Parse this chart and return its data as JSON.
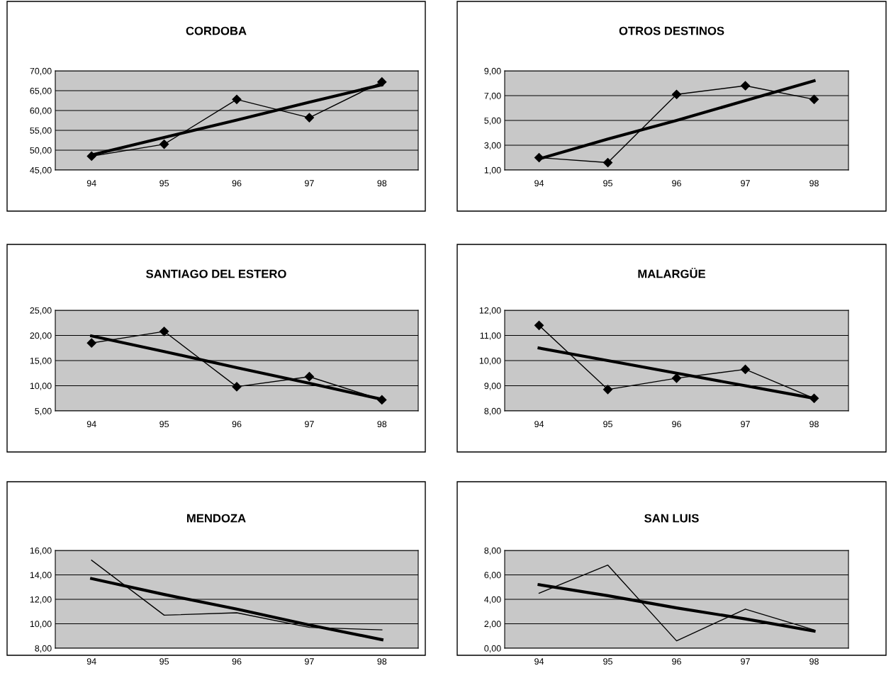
{
  "chart_data": [
    {
      "type": "line",
      "title": "CORDOBA",
      "categories": [
        "94",
        "95",
        "96",
        "97",
        "98"
      ],
      "ylim": [
        45,
        70
      ],
      "yticks": [
        {
          "value": 45,
          "label": "45,00"
        },
        {
          "value": 50,
          "label": "50,00"
        },
        {
          "value": 55,
          "label": "55,00"
        },
        {
          "value": 60,
          "label": "60,00"
        },
        {
          "value": 65,
          "label": "65,00"
        },
        {
          "value": 70,
          "label": "70,00"
        }
      ],
      "grid": "y",
      "series": [
        {
          "color": "#000000",
          "marker": "diamond",
          "values": [
            48.5,
            51.5,
            62.8,
            58.2,
            67.2
          ]
        },
        {
          "color": "#000000",
          "marker": "none",
          "values": [
            48.8,
            53.2,
            57.6,
            62.1,
            66.5
          ]
        }
      ]
    },
    {
      "type": "line",
      "title": "OTROS DESTINOS",
      "categories": [
        "94",
        "95",
        "96",
        "97",
        "98"
      ],
      "ylim": [
        1,
        9
      ],
      "yticks": [
        {
          "value": 1,
          "label": "1,00"
        },
        {
          "value": 3,
          "label": "3,00"
        },
        {
          "value": 5,
          "label": "5,00"
        },
        {
          "value": 7,
          "label": "7,00"
        },
        {
          "value": 9,
          "label": "9,00"
        }
      ],
      "grid": "y",
      "series": [
        {
          "color": "#000000",
          "marker": "diamond",
          "values": [
            2.0,
            1.6,
            7.1,
            7.8,
            6.7
          ]
        },
        {
          "color": "#000000",
          "marker": "none",
          "values": [
            1.9,
            3.5,
            5.0,
            6.6,
            8.2
          ]
        }
      ]
    },
    {
      "type": "line",
      "title": "SANTIAGO DEL ESTERO",
      "categories": [
        "94",
        "95",
        "96",
        "97",
        "98"
      ],
      "ylim": [
        5,
        25
      ],
      "yticks": [
        {
          "value": 5,
          "label": "5,00"
        },
        {
          "value": 10,
          "label": "10,00"
        },
        {
          "value": 15,
          "label": "15,00"
        },
        {
          "value": 20,
          "label": "20,00"
        },
        {
          "value": 25,
          "label": "25,00"
        }
      ],
      "grid": "y",
      "series": [
        {
          "color": "#000000",
          "marker": "diamond",
          "values": [
            18.5,
            20.8,
            9.8,
            11.8,
            7.2
          ]
        },
        {
          "color": "#000000",
          "marker": "none",
          "values": [
            19.9,
            16.8,
            13.6,
            10.5,
            7.3
          ]
        }
      ]
    },
    {
      "type": "line",
      "title": "MALARGÜE",
      "categories": [
        "94",
        "95",
        "96",
        "97",
        "98"
      ],
      "ylim": [
        8,
        12
      ],
      "yticks": [
        {
          "value": 8,
          "label": "8,00"
        },
        {
          "value": 9,
          "label": "9,00"
        },
        {
          "value": 10,
          "label": "10,00"
        },
        {
          "value": 11,
          "label": "11,00"
        },
        {
          "value": 12,
          "label": "12,00"
        }
      ],
      "grid": "y",
      "series": [
        {
          "color": "#000000",
          "marker": "diamond",
          "values": [
            11.4,
            8.85,
            9.3,
            9.65,
            8.5
          ]
        },
        {
          "color": "#000000",
          "marker": "none",
          "values": [
            10.5,
            10.0,
            9.5,
            9.0,
            8.5
          ]
        }
      ]
    },
    {
      "type": "line",
      "title": "MENDOZA",
      "categories": [
        "94",
        "95",
        "96",
        "97",
        "98"
      ],
      "ylim": [
        8,
        16
      ],
      "yticks": [
        {
          "value": 8,
          "label": "8,00"
        },
        {
          "value": 10,
          "label": "10,00"
        },
        {
          "value": 12,
          "label": "12,00"
        },
        {
          "value": 14,
          "label": "14,00"
        },
        {
          "value": 16,
          "label": "16,00"
        }
      ],
      "grid": "y",
      "series": [
        {
          "color": "#000000",
          "marker": "none",
          "values": [
            15.2,
            10.7,
            10.9,
            9.7,
            9.5
          ]
        },
        {
          "color": "#000000",
          "marker": "none",
          "values": [
            13.7,
            12.4,
            11.2,
            9.9,
            8.7
          ]
        }
      ]
    },
    {
      "type": "line",
      "title": "SAN LUIS",
      "categories": [
        "94",
        "95",
        "96",
        "97",
        "98"
      ],
      "ylim": [
        0,
        8
      ],
      "yticks": [
        {
          "value": 0,
          "label": "0,00"
        },
        {
          "value": 2,
          "label": "2,00"
        },
        {
          "value": 4,
          "label": "4,00"
        },
        {
          "value": 6,
          "label": "6,00"
        },
        {
          "value": 8,
          "label": "8,00"
        }
      ],
      "grid": "y",
      "series": [
        {
          "color": "#000000",
          "marker": "none",
          "values": [
            4.5,
            6.8,
            0.6,
            3.2,
            1.5
          ]
        },
        {
          "color": "#000000",
          "marker": "none",
          "values": [
            5.2,
            4.3,
            3.3,
            2.4,
            1.4
          ]
        }
      ]
    }
  ]
}
